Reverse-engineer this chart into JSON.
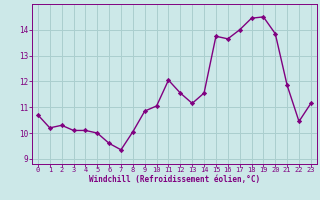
{
  "x": [
    0,
    1,
    2,
    3,
    4,
    5,
    6,
    7,
    8,
    9,
    10,
    11,
    12,
    13,
    14,
    15,
    16,
    17,
    18,
    19,
    20,
    21,
    22,
    23
  ],
  "y": [
    10.7,
    10.2,
    10.3,
    10.1,
    10.1,
    10.0,
    9.6,
    9.35,
    10.05,
    10.85,
    11.05,
    12.05,
    11.55,
    11.15,
    11.55,
    13.75,
    13.65,
    14.0,
    14.45,
    14.5,
    13.85,
    11.85,
    10.45,
    11.15
  ],
  "line_color": "#800080",
  "marker": "D",
  "marker_size": 2.2,
  "bg_color": "#cce8e8",
  "grid_color": "#aacece",
  "xlabel": "Windchill (Refroidissement éolien,°C)",
  "xlabel_color": "#800080",
  "tick_color": "#800080",
  "ylim": [
    8.8,
    15.0
  ],
  "xlim": [
    -0.5,
    23.5
  ],
  "yticks": [
    9,
    10,
    11,
    12,
    13,
    14
  ],
  "xticks": [
    0,
    1,
    2,
    3,
    4,
    5,
    6,
    7,
    8,
    9,
    10,
    11,
    12,
    13,
    14,
    15,
    16,
    17,
    18,
    19,
    20,
    21,
    22,
    23
  ],
  "linewidth": 1.0,
  "spine_color": "#800080",
  "tick_fontsize": 5.0,
  "xlabel_fontsize": 5.5
}
